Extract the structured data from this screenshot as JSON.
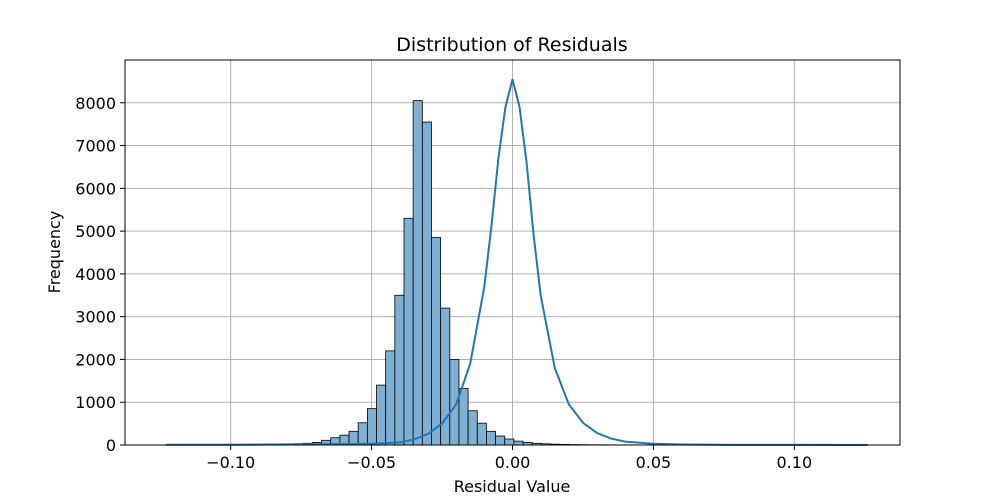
{
  "chart_data": {
    "type": "bar",
    "title": "Distribution of Residuals",
    "xlabel": "Residual Value",
    "ylabel": "Frequency",
    "xlim": [
      -0.1375,
      0.1375
    ],
    "ylim": [
      0,
      9000
    ],
    "grid": true,
    "legend": "none",
    "x_ticks": [
      -0.1,
      -0.05,
      0.0,
      0.05,
      0.1
    ],
    "x_tick_labels": [
      "−0.10",
      "−0.05",
      "0.00",
      "0.05",
      "0.10"
    ],
    "y_ticks": [
      0,
      1000,
      2000,
      3000,
      4000,
      5000,
      6000,
      7000,
      8000
    ],
    "y_tick_labels": [
      "0",
      "1000",
      "2000",
      "3000",
      "4000",
      "5000",
      "6000",
      "7000",
      "8000"
    ],
    "bin_start": -0.123,
    "bin_width": 0.00325,
    "values": [
      2,
      2,
      2,
      3,
      3,
      4,
      5,
      6,
      8,
      10,
      12,
      15,
      18,
      25,
      30,
      40,
      60,
      110,
      170,
      230,
      320,
      520,
      850,
      1400,
      2200,
      3500,
      5300,
      8050,
      7550,
      4850,
      3200,
      2000,
      1320,
      800,
      510,
      320,
      210,
      140,
      90,
      60,
      40,
      28,
      20,
      14,
      10,
      8,
      6,
      5,
      4,
      3,
      3,
      3,
      2,
      2,
      2,
      1,
      1,
      1,
      1,
      1,
      1,
      1,
      1,
      1,
      1,
      1,
      1,
      1,
      1,
      1,
      1,
      1,
      1,
      1,
      1,
      1,
      1
    ],
    "kde": {
      "x": [
        -0.123,
        -0.1,
        -0.08,
        -0.06,
        -0.05,
        -0.04,
        -0.035,
        -0.03,
        -0.025,
        -0.02,
        -0.015,
        -0.01,
        -0.0075,
        -0.005,
        -0.0025,
        0.0,
        0.0025,
        0.005,
        0.0075,
        0.01,
        0.015,
        0.02,
        0.025,
        0.03,
        0.035,
        0.04,
        0.05,
        0.06,
        0.08,
        0.1,
        0.126
      ],
      "y": [
        5,
        6,
        15,
        20,
        30,
        60,
        130,
        260,
        500,
        950,
        1900,
        3700,
        5100,
        6700,
        7900,
        8550,
        7900,
        6600,
        4900,
        3500,
        1800,
        950,
        520,
        280,
        150,
        80,
        30,
        12,
        4,
        2,
        1
      ]
    },
    "colors": {
      "bar_fill": "#7fafd3",
      "bar_edge": "#000000",
      "kde_line": "#1f77b4",
      "grid": "#b0b0b0"
    }
  }
}
